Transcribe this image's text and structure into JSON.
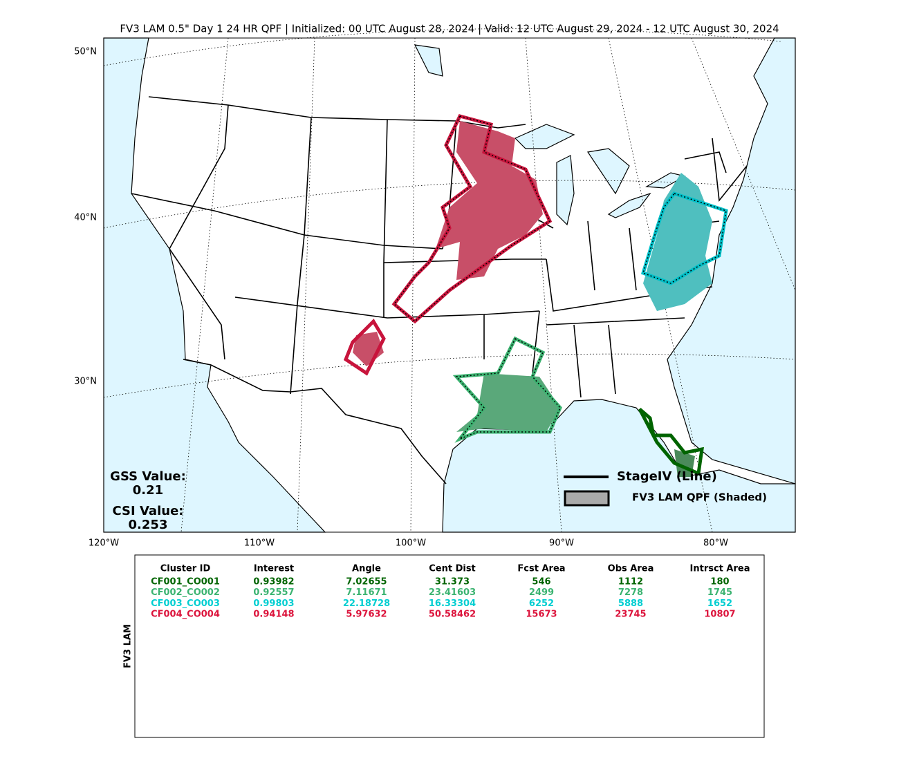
{
  "title": "FV3 LAM 0.5\" Day 1 24 HR QPF | Initialized: 00 UTC August 28, 2024 | Valid: 12 UTC August 29, 2024 - 12 UTC August 30, 2024",
  "map": {
    "lat_labels": [
      "50°N",
      "40°N",
      "30°N"
    ],
    "lon_labels": [
      "120°W",
      "110°W",
      "100°W",
      "90°W",
      "80°W"
    ],
    "gss_label": "GSS Value:",
    "gss_value": "0.21",
    "csi_label": "CSI Value:",
    "csi_value": "0.253",
    "legend": [
      "StageIV (Line)",
      "FV3 LAM QPF (Shaded)"
    ]
  },
  "table": {
    "side_label": "FV3 LAM",
    "header": [
      "Cluster ID",
      "Interest",
      "Angle",
      "Cent Dist",
      "Fcst Area",
      "Obs Area",
      "Intrsct Area"
    ],
    "rows": [
      {
        "color": "#006400",
        "cells": [
          "CF001_CO001",
          "0.93982",
          "7.02655",
          "31.373",
          "546",
          "1112",
          "180"
        ]
      },
      {
        "color": "#3cb371",
        "cells": [
          "CF002_CO002",
          "0.92557",
          "7.11671",
          "23.41603",
          "2499",
          "7278",
          "1745"
        ]
      },
      {
        "color": "#00ced1",
        "cells": [
          "CF003_CO003",
          "0.99803",
          "22.18728",
          "16.33304",
          "6252",
          "5888",
          "1652"
        ]
      },
      {
        "color": "#dc143c",
        "cells": [
          "CF004_CO004",
          "0.94148",
          "5.97632",
          "50.58462",
          "15673",
          "23745",
          "10807"
        ]
      }
    ]
  }
}
